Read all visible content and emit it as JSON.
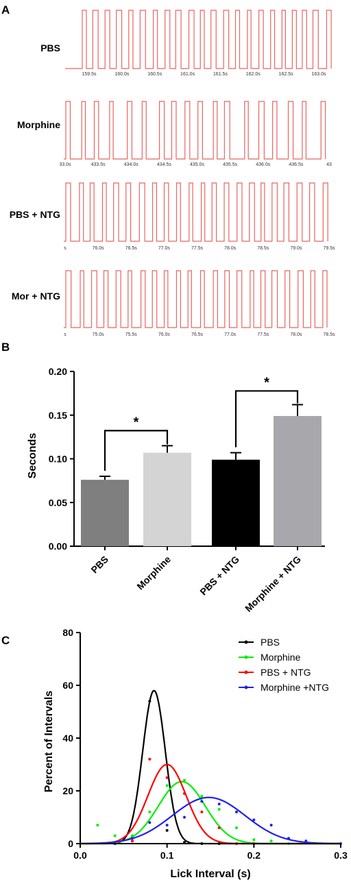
{
  "panel_labels": {
    "a": "A",
    "b": "B",
    "c": "C"
  },
  "chart_data": [
    {
      "type": "line",
      "panel": "A",
      "traces": [
        {
          "name": "PBS",
          "ticks": [
            "159.5s",
            "160.0s",
            "160.5s",
            "161.0s",
            "161.5s",
            "162.0s",
            "162.5s",
            "163.0s"
          ],
          "color": "#e8655f"
        },
        {
          "name": "Morphine",
          "ticks": [
            "33.0s",
            "433.5s",
            "434.0s",
            "434.5s",
            "435.0s",
            "435.5s",
            "436.0s",
            "436.5s",
            "43"
          ],
          "color": "#e8655f"
        },
        {
          "name": "PBS + NTG",
          "ticks": [
            "s",
            "76.0s",
            "76.5s",
            "77.0s",
            "77.5s",
            "78.0s",
            "78.5s",
            "79.0s",
            "79.5s"
          ],
          "color": "#e8655f"
        },
        {
          "name": "Mor + NTG",
          "ticks": [
            "s",
            "75.0s",
            "75.5s",
            "76.0s",
            "76.5s",
            "77.0s",
            "77.5s",
            "78.0s",
            "78.5s"
          ],
          "color": "#e8655f"
        }
      ]
    },
    {
      "type": "bar",
      "panel": "B",
      "categories": [
        "PBS",
        "Morphine",
        "PBS + NTG",
        "Morphine + NTG"
      ],
      "values": [
        0.076,
        0.107,
        0.099,
        0.149
      ],
      "errors": [
        0.004,
        0.008,
        0.008,
        0.013
      ],
      "colors": [
        "#7f7f7f",
        "#d4d4d4",
        "#000000",
        "#a8a8ac"
      ],
      "ylabel": "Seconds",
      "ylim": [
        0,
        0.2
      ],
      "yticks": [
        "0.00",
        "0.05",
        "0.10",
        "0.15",
        "0.20"
      ],
      "significance": [
        {
          "from": 0,
          "to": 1,
          "label": "*"
        },
        {
          "from": 2,
          "to": 3,
          "label": "*"
        }
      ]
    },
    {
      "type": "line",
      "panel": "C",
      "xlabel": "Lick Interval (s)",
      "ylabel": "Percent of Intervals",
      "xlim": [
        0,
        0.3
      ],
      "ylim": [
        0,
        80
      ],
      "xticks": [
        "0.0",
        "0.1",
        "0.2",
        "0.3"
      ],
      "yticks": [
        "0",
        "20",
        "40",
        "60",
        "80"
      ],
      "legend_position": "top-right",
      "series": [
        {
          "name": "PBS",
          "color": "#000000",
          "amp": 58,
          "mean": 0.085,
          "sd": 0.013,
          "points": [
            [
              0.04,
              0
            ],
            [
              0.06,
              1
            ],
            [
              0.08,
              54
            ],
            [
              0.1,
              5
            ],
            [
              0.12,
              0.5
            ],
            [
              0.14,
              0
            ],
            [
              0.16,
              0
            ]
          ]
        },
        {
          "name": "Morphine",
          "color": "#00ee00",
          "amp": 23.5,
          "mean": 0.117,
          "sd": 0.027,
          "points": [
            [
              0.02,
              7
            ],
            [
              0.04,
              3
            ],
            [
              0.06,
              3
            ],
            [
              0.08,
              12
            ],
            [
              0.1,
              22
            ],
            [
              0.12,
              24
            ],
            [
              0.14,
              18
            ],
            [
              0.16,
              13
            ],
            [
              0.18,
              6
            ],
            [
              0.2,
              1.5
            ],
            [
              0.22,
              1
            ],
            [
              0.24,
              0
            ]
          ]
        },
        {
          "name": "PBS + NTG",
          "color": "#ff0000",
          "amp": 30,
          "mean": 0.1,
          "sd": 0.022,
          "points": [
            [
              0.04,
              0
            ],
            [
              0.06,
              1
            ],
            [
              0.08,
              32
            ],
            [
              0.1,
              25
            ],
            [
              0.12,
              19
            ],
            [
              0.14,
              12
            ],
            [
              0.16,
              6
            ],
            [
              0.18,
              0
            ],
            [
              0.2,
              0
            ]
          ]
        },
        {
          "name": "Morphine +NTG",
          "color": "#2020ee",
          "amp": 17.5,
          "mean": 0.148,
          "sd": 0.042,
          "points": [
            [
              0.04,
              0
            ],
            [
              0.06,
              2
            ],
            [
              0.08,
              8
            ],
            [
              0.1,
              7
            ],
            [
              0.12,
              10
            ],
            [
              0.14,
              16
            ],
            [
              0.16,
              15
            ],
            [
              0.18,
              12
            ],
            [
              0.2,
              9
            ],
            [
              0.22,
              7
            ],
            [
              0.24,
              2
            ],
            [
              0.26,
              1
            ],
            [
              0.3,
              0
            ]
          ]
        }
      ]
    }
  ]
}
